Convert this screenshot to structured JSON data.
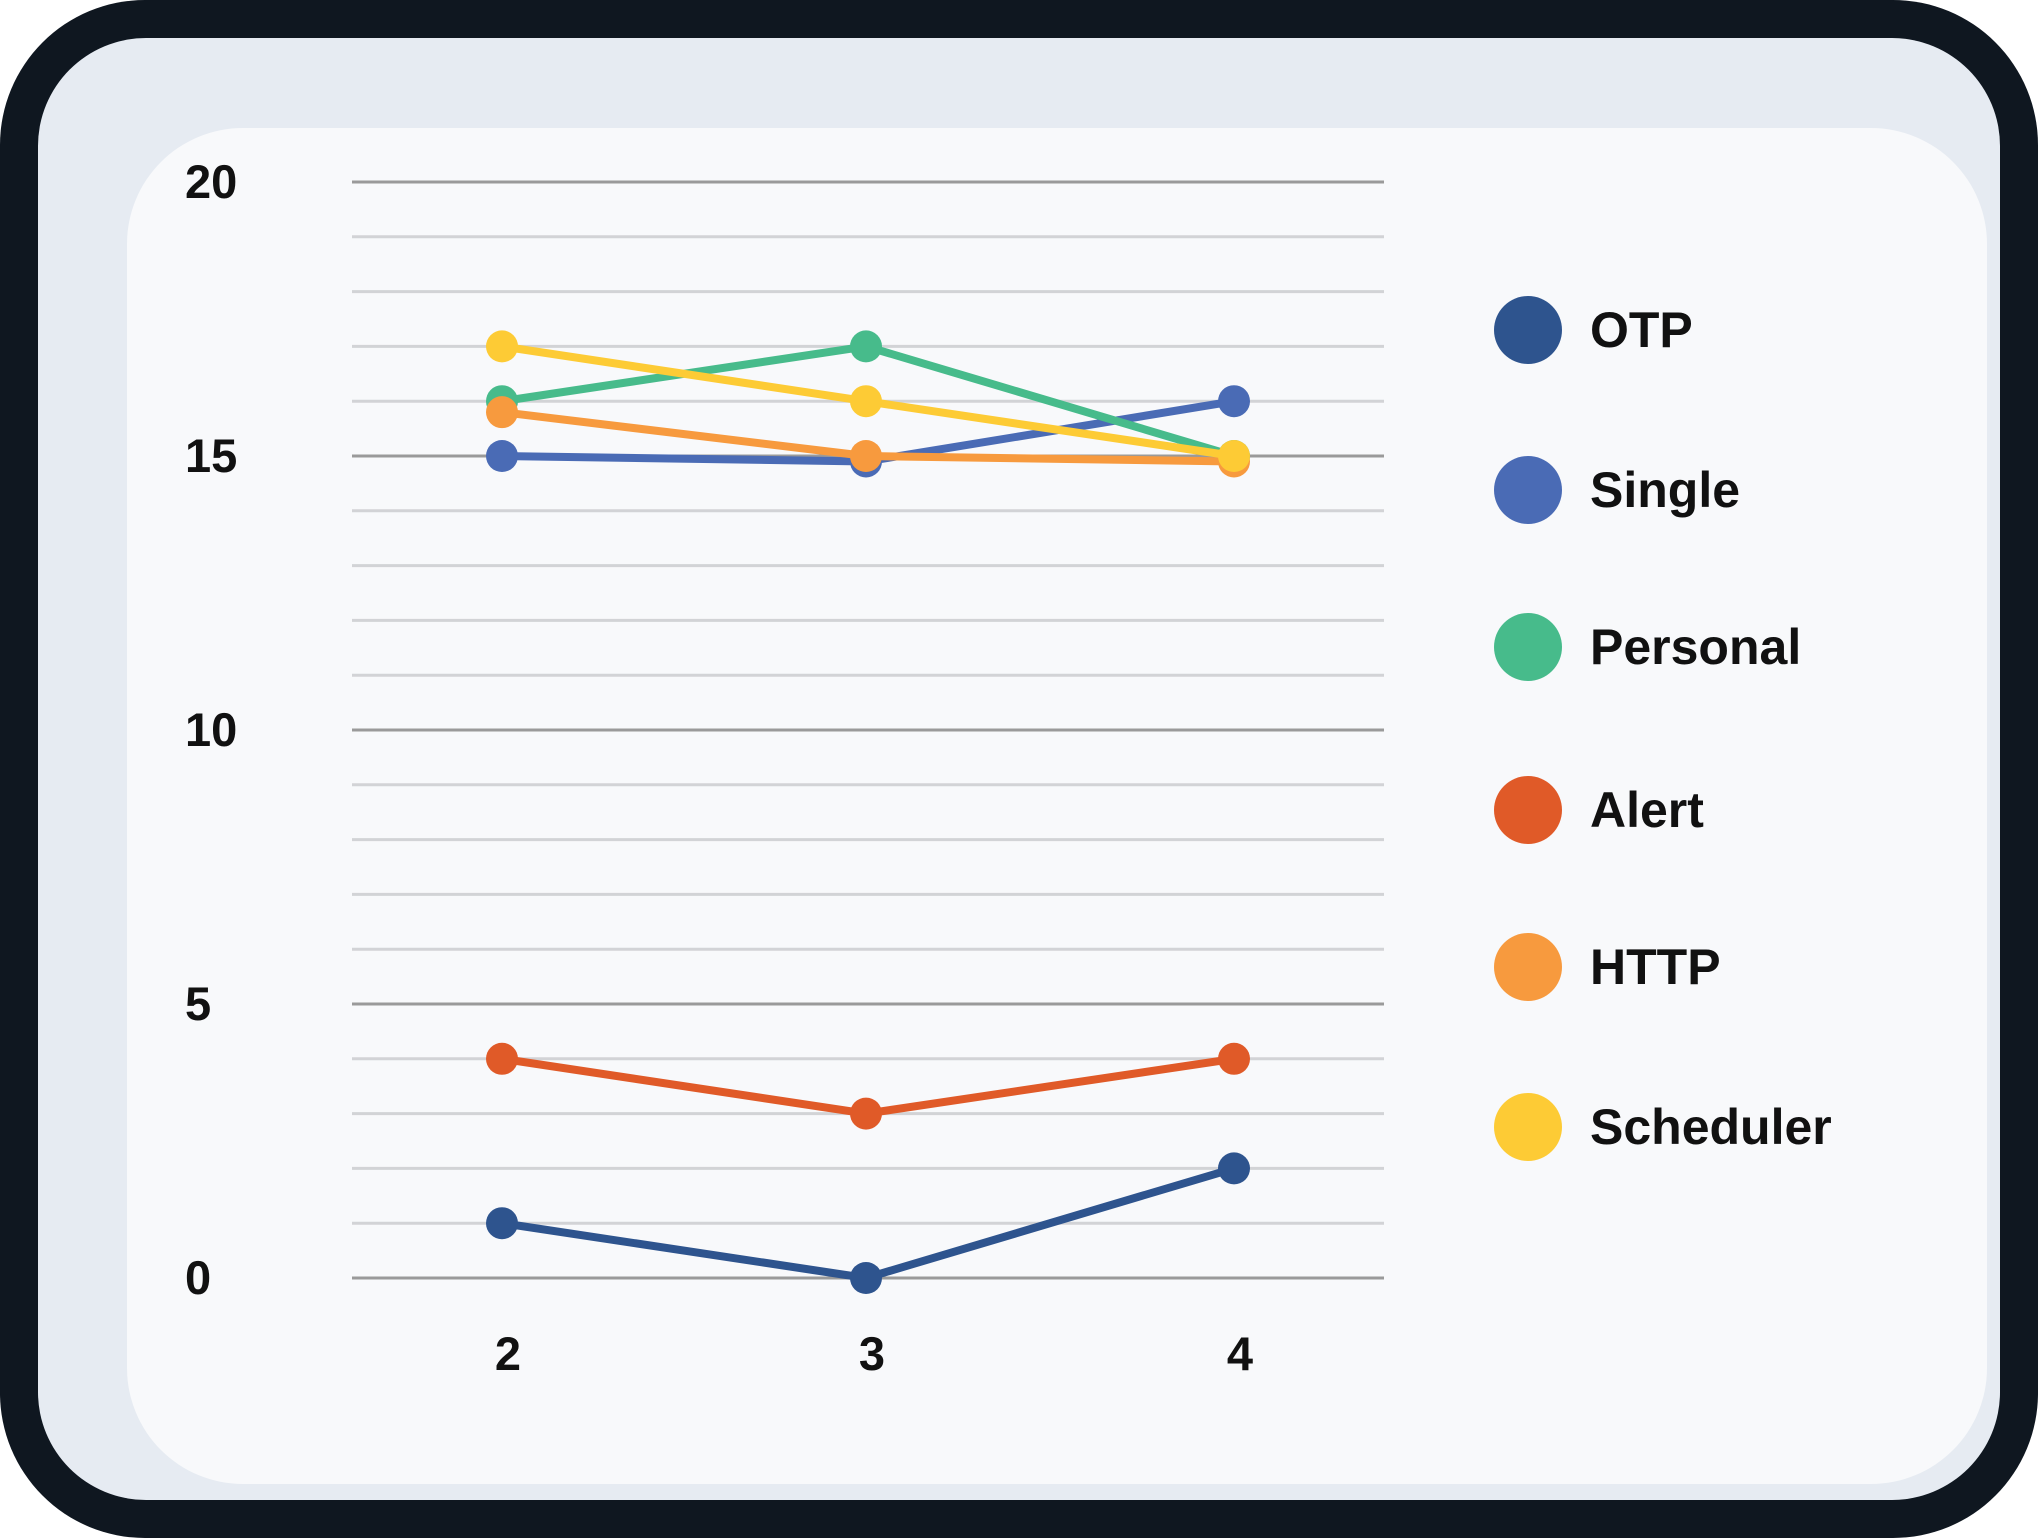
{
  "chart_data": {
    "type": "line",
    "x": [
      2,
      3,
      4
    ],
    "x_tick_labels": [
      "2",
      "3",
      "4"
    ],
    "y_tick_labels": [
      "0",
      "5",
      "10",
      "15",
      "20"
    ],
    "ylim": [
      0,
      20
    ],
    "grid": true,
    "legend_position": "right",
    "series": [
      {
        "name": "OTP",
        "color": "#2e548e",
        "values": [
          1,
          0,
          2
        ]
      },
      {
        "name": "Single",
        "color": "#4a6bb5",
        "values": [
          15,
          14.9,
          16
        ]
      },
      {
        "name": "Personal",
        "color": "#47bb8b",
        "values": [
          16,
          17,
          15
        ]
      },
      {
        "name": "Alert",
        "color": "#e05a28",
        "values": [
          4,
          3,
          4
        ]
      },
      {
        "name": "HTTP",
        "color": "#f79a3e",
        "values": [
          15.8,
          15,
          14.9
        ]
      },
      {
        "name": "Scheduler",
        "color": "#fdcb35",
        "values": [
          17,
          16,
          15
        ]
      }
    ]
  }
}
